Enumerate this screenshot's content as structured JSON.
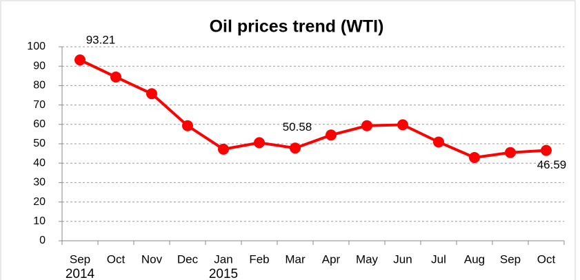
{
  "chart_data": {
    "type": "line",
    "title": "Oil prices trend (WTI)",
    "categories": [
      "Sep",
      "Oct",
      "Nov",
      "Dec",
      "Jan",
      "Feb",
      "Mar",
      "Apr",
      "May",
      "Jun",
      "Jul",
      "Aug",
      "Sep",
      "Oct"
    ],
    "year_labels": [
      "2014",
      null,
      null,
      null,
      "2015",
      null,
      null,
      null,
      null,
      null,
      null,
      null,
      null,
      null
    ],
    "series": [
      {
        "name": "WTI",
        "color": "#ff0000",
        "values": [
          93.21,
          84.4,
          75.8,
          59.3,
          47.2,
          50.58,
          47.8,
          54.5,
          59.3,
          59.8,
          50.9,
          42.9,
          45.5,
          46.59
        ],
        "value_labels": [
          "93.21",
          null,
          null,
          null,
          null,
          "50.58",
          null,
          null,
          null,
          null,
          null,
          null,
          null,
          "46.59"
        ]
      }
    ],
    "ylim": [
      0,
      100
    ],
    "yticks": [
      0,
      10,
      20,
      30,
      40,
      50,
      60,
      70,
      80,
      90,
      100
    ],
    "grid": true
  }
}
